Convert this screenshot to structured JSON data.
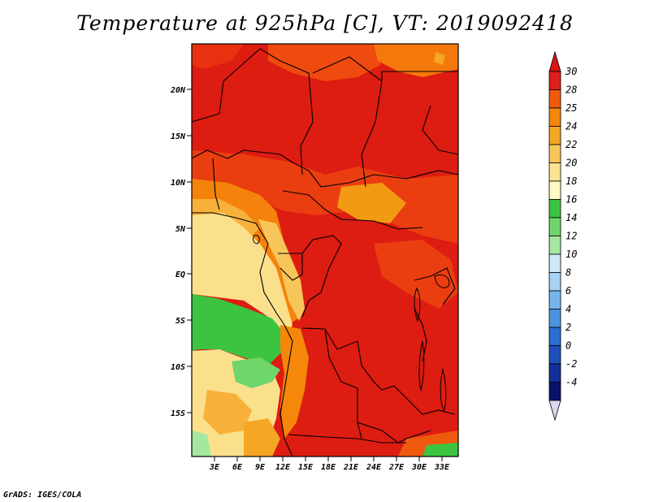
{
  "title": "Temperature at 925hPa [C], VT: 2019092418",
  "credit": "GrADS: IGES/COLA",
  "map": {
    "lat_ticks": [
      "20N",
      "15N",
      "10N",
      "5N",
      "EQ",
      "5S",
      "10S",
      "15S"
    ],
    "lon_ticks": [
      "3E",
      "6E",
      "9E",
      "12E",
      "15E",
      "18E",
      "21E",
      "24E",
      "27E",
      "30E",
      "33E"
    ]
  },
  "colorbar": {
    "labels": [
      "30",
      "28",
      "25",
      "24",
      "22",
      "20",
      "18",
      "16",
      "14",
      "12",
      "10",
      "8",
      "6",
      "4",
      "2",
      "0",
      "-2",
      "-4"
    ],
    "colors": [
      "#e01e1e",
      "#f05a0e",
      "#f5870a",
      "#f5a623",
      "#f7c65a",
      "#fbe390",
      "#fef9c4",
      "#3cc440",
      "#6fd66b",
      "#a4e8a0",
      "#cfe8f7",
      "#a7d2f3",
      "#77b4ec",
      "#4a93e0",
      "#2a6fd2",
      "#1f4fba",
      "#13309a",
      "#0a126b"
    ],
    "over_color": "#d71515",
    "under_color": "#d8d8f5"
  }
}
